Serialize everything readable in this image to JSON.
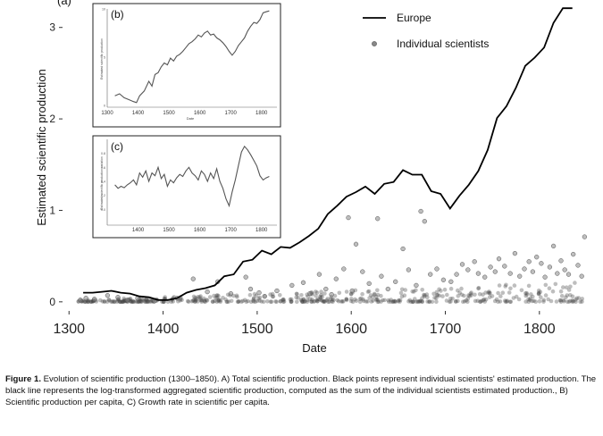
{
  "chart_data": [
    {
      "id": "main",
      "type": "line+scatter",
      "panel_label": "(a)",
      "title": "",
      "xlabel": "Date",
      "ylabel": "Estimated scientific production",
      "xlim": [
        1295,
        1860
      ],
      "ylim": [
        -0.07,
        3.3
      ],
      "xticks": [
        1300,
        1400,
        1500,
        1600,
        1700,
        1800
      ],
      "yticks": [
        0,
        1,
        2,
        3
      ],
      "legend_position": "top-right",
      "series": [
        {
          "name": "Europe",
          "kind": "line",
          "x": [
            1315,
            1325,
            1335,
            1345,
            1355,
            1365,
            1375,
            1385,
            1395,
            1405,
            1415,
            1425,
            1435,
            1445,
            1455,
            1465,
            1475,
            1485,
            1495,
            1505,
            1515,
            1525,
            1535,
            1545,
            1555,
            1565,
            1575,
            1585,
            1595,
            1605,
            1615,
            1625,
            1635,
            1645,
            1655,
            1665,
            1675,
            1685,
            1695,
            1705,
            1715,
            1725,
            1735,
            1745,
            1755,
            1765,
            1775,
            1785,
            1795,
            1805,
            1815,
            1825,
            1835
          ],
          "y": [
            0.1,
            0.1,
            0.11,
            0.12,
            0.1,
            0.09,
            0.06,
            0.05,
            0.02,
            0.02,
            0.04,
            0.1,
            0.13,
            0.15,
            0.18,
            0.28,
            0.3,
            0.44,
            0.46,
            0.56,
            0.52,
            0.6,
            0.59,
            0.65,
            0.72,
            0.8,
            0.96,
            1.05,
            1.15,
            1.2,
            1.26,
            1.18,
            1.29,
            1.31,
            1.44,
            1.39,
            1.39,
            1.21,
            1.18,
            1.02,
            1.16,
            1.28,
            1.43,
            1.66,
            2.01,
            2.14,
            2.34,
            2.58,
            2.67,
            2.78,
            3.05,
            3.21,
            3.21
          ]
        },
        {
          "name": "Individual scientists",
          "kind": "scatter",
          "x": [
            1312,
            1318,
            1327,
            1341,
            1352,
            1362,
            1373,
            1391,
            1415,
            1432,
            1447,
            1458,
            1472,
            1488,
            1493,
            1502,
            1508,
            1521,
            1537,
            1549,
            1556,
            1566,
            1573,
            1579,
            1584,
            1592,
            1597,
            1601,
            1605,
            1612,
            1619,
            1628,
            1632,
            1639,
            1647,
            1655,
            1661,
            1669,
            1674,
            1678,
            1684,
            1691,
            1698,
            1706,
            1712,
            1718,
            1724,
            1731,
            1735,
            1742,
            1748,
            1753,
            1757,
            1763,
            1769,
            1774,
            1779,
            1784,
            1789,
            1793,
            1797,
            1802,
            1806,
            1811,
            1815,
            1819,
            1823,
            1827,
            1831,
            1836,
            1841,
            1845,
            1848
          ],
          "y": [
            0.02,
            0.04,
            0.03,
            0.07,
            0.05,
            0.02,
            0.04,
            0.01,
            0.04,
            0.25,
            0.11,
            0.22,
            0.09,
            0.27,
            0.14,
            0.1,
            0.06,
            0.12,
            0.18,
            0.21,
            0.09,
            0.3,
            0.14,
            0.08,
            0.25,
            0.36,
            0.92,
            0.12,
            0.63,
            0.33,
            0.2,
            0.91,
            0.28,
            0.14,
            0.22,
            0.58,
            0.35,
            0.18,
            0.99,
            0.88,
            0.3,
            0.36,
            0.24,
            0.22,
            0.3,
            0.41,
            0.35,
            0.44,
            0.31,
            0.27,
            0.38,
            0.33,
            0.47,
            0.39,
            0.31,
            0.53,
            0.28,
            0.36,
            0.44,
            0.33,
            0.49,
            0.42,
            0.27,
            0.38,
            0.61,
            0.31,
            0.45,
            0.35,
            0.3,
            0.52,
            0.4,
            0.28,
            0.71
          ]
        }
      ]
    },
    {
      "id": "inset_b",
      "type": "line",
      "panel_label": "(b)",
      "xlabel": "Date",
      "ylabel": "Estimated scientific production",
      "xlim": [
        1300,
        1850
      ],
      "ylim": [
        0,
        10
      ],
      "xticks": [
        1300,
        1400,
        1500,
        1600,
        1700,
        1800
      ],
      "yticks": [
        0,
        5,
        10
      ],
      "series": [
        {
          "name": "Scientific production per capita",
          "x": [
            1325,
            1340,
            1355,
            1370,
            1385,
            1395,
            1405,
            1420,
            1435,
            1445,
            1455,
            1465,
            1475,
            1485,
            1495,
            1505,
            1515,
            1525,
            1535,
            1545,
            1555,
            1565,
            1575,
            1585,
            1595,
            1605,
            1615,
            1625,
            1635,
            1645,
            1655,
            1665,
            1675,
            1685,
            1695,
            1705,
            1715,
            1725,
            1735,
            1745,
            1755,
            1765,
            1775,
            1785,
            1795,
            1805,
            1815,
            1825
          ],
          "y": [
            1.0,
            1.2,
            0.8,
            0.6,
            0.4,
            0.3,
            1.0,
            1.5,
            2.5,
            2.0,
            3.2,
            3.4,
            4.0,
            4.4,
            4.2,
            4.9,
            4.6,
            5.1,
            5.3,
            5.6,
            6.0,
            6.4,
            6.6,
            6.9,
            7.3,
            7.1,
            7.5,
            7.7,
            7.3,
            7.4,
            7.0,
            6.8,
            6.5,
            6.1,
            5.6,
            5.2,
            5.6,
            6.2,
            6.6,
            7.0,
            7.7,
            8.2,
            8.6,
            8.5,
            8.9,
            9.6,
            9.7,
            9.8
          ]
        }
      ]
    },
    {
      "id": "inset_c",
      "type": "line",
      "panel_label": "(c)",
      "xlabel": "Date",
      "ylabel": "Estimated scientific production variation",
      "xlim": [
        1300,
        1850
      ],
      "ylim": [
        -0.2,
        1.0
      ],
      "xticks": [
        1400,
        1500,
        1600,
        1700,
        1800
      ],
      "yticks": [
        0.0,
        0.2,
        0.4,
        0.6,
        0.8
      ],
      "series": [
        {
          "name": "Growth rate in scientific per capita",
          "x": [
            1325,
            1335,
            1345,
            1355,
            1365,
            1375,
            1385,
            1395,
            1405,
            1415,
            1425,
            1435,
            1445,
            1455,
            1465,
            1475,
            1485,
            1495,
            1505,
            1515,
            1525,
            1535,
            1545,
            1555,
            1565,
            1575,
            1585,
            1595,
            1605,
            1615,
            1625,
            1635,
            1645,
            1655,
            1665,
            1675,
            1685,
            1695,
            1705,
            1715,
            1725,
            1735,
            1745,
            1755,
            1765,
            1775,
            1785,
            1795,
            1805,
            1815,
            1825
          ],
          "y": [
            0.35,
            0.3,
            0.33,
            0.31,
            0.35,
            0.38,
            0.42,
            0.35,
            0.52,
            0.46,
            0.55,
            0.4,
            0.52,
            0.48,
            0.6,
            0.44,
            0.5,
            0.33,
            0.42,
            0.38,
            0.45,
            0.5,
            0.47,
            0.55,
            0.6,
            0.52,
            0.48,
            0.42,
            0.55,
            0.5,
            0.4,
            0.52,
            0.44,
            0.58,
            0.4,
            0.3,
            0.15,
            0.05,
            0.25,
            0.42,
            0.62,
            0.82,
            0.9,
            0.85,
            0.78,
            0.7,
            0.62,
            0.48,
            0.42,
            0.45,
            0.47
          ]
        }
      ]
    }
  ],
  "caption": {
    "label": "Figure 1.",
    "text": "Evolution of scientific production (1300–1850). A) Total scientific production. Black points represent individual scientists' estimated production. The black line represents the log-transformed aggregated scientific production, computed as the sum of the individual scientists estimated production., B) Scientific production per capita, C) Growth rate in scientific per capita."
  },
  "colors": {
    "europe_line": "#000000",
    "scatter_point": "#555555",
    "inset_line": "#555555",
    "axis": "#333333"
  }
}
